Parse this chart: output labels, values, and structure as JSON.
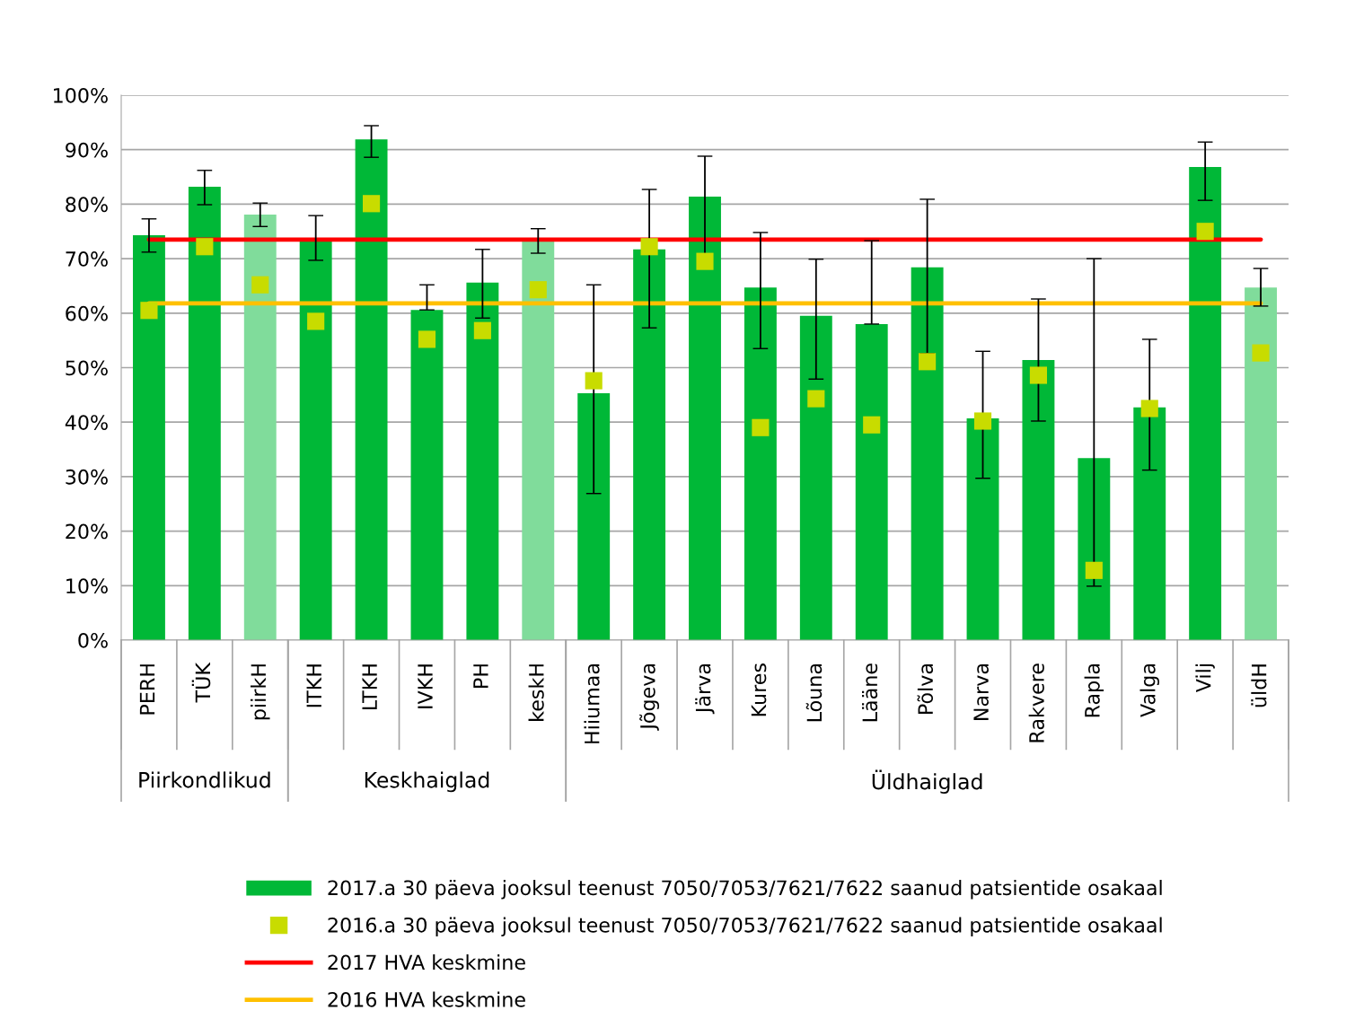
{
  "chart_data": {
    "type": "bar",
    "categories": [
      "PERH",
      "TÜK",
      "piirkH",
      "ITKH",
      "LTKH",
      "IVKH",
      "PH",
      "keskH",
      "Hiiumaa",
      "Jõgeva",
      "Järva",
      "Kures",
      "Lõuna",
      "Lääne",
      "Põlva",
      "Narva",
      "Rakvere",
      "Rapla",
      "Valga",
      "Vilj",
      "üldH"
    ],
    "series": [
      {
        "name": "2017.a 30 päeva jooksul teenust 7050/7053/7621/7622 saanud patsientide osakaal",
        "color": "#00b837",
        "colors": [
          "#00b837",
          "#00b837",
          "#80dc9b",
          "#00b837",
          "#00b837",
          "#00b837",
          "#00b837",
          "#80dc9b",
          "#00b837",
          "#00b837",
          "#00b837",
          "#00b837",
          "#00b837",
          "#00b837",
          "#00b837",
          "#00b837",
          "#00b837",
          "#00b837",
          "#00b837",
          "#00b837",
          "#80dc9b"
        ],
        "values": [
          74.3,
          83.2,
          78.1,
          73.8,
          91.9,
          60.6,
          65.6,
          73.3,
          45.3,
          71.7,
          81.4,
          64.7,
          59.5,
          58.0,
          68.4,
          40.7,
          51.4,
          33.4,
          42.7,
          86.8,
          64.7
        ],
        "errors": [
          [
            71.2,
            77.3
          ],
          [
            79.9,
            86.2
          ],
          [
            75.9,
            80.2
          ],
          [
            69.7,
            77.9
          ],
          [
            88.6,
            94.4
          ],
          [
            60.6,
            65.2
          ],
          [
            59.1,
            71.7
          ],
          [
            71.0,
            75.5
          ],
          [
            26.9,
            65.2
          ],
          [
            57.3,
            82.7
          ],
          [
            70.8,
            88.8
          ],
          [
            53.5,
            74.8
          ],
          [
            47.9,
            69.9
          ],
          [
            58.0,
            73.3
          ],
          [
            52.6,
            80.9
          ],
          [
            29.7,
            53.0
          ],
          [
            40.2,
            62.6
          ],
          [
            9.9,
            70.0
          ],
          [
            31.2,
            55.2
          ],
          [
            80.7,
            91.4
          ],
          [
            61.3,
            68.2
          ]
        ]
      },
      {
        "name": "2016.a 30 päeva jooksul teenust 7050/7053/7621/7622 saanud patsientide osakaal",
        "type": "scatter",
        "color": "#c8dc00",
        "marker": "square",
        "values": [
          60.5,
          72.2,
          65.2,
          58.5,
          80.1,
          55.2,
          56.8,
          64.3,
          47.6,
          72.2,
          69.5,
          39.0,
          44.3,
          39.5,
          51.1,
          40.2,
          48.6,
          12.8,
          42.5,
          75.0,
          52.7
        ]
      }
    ],
    "ref_lines": [
      {
        "axis": "y",
        "value": 73.5,
        "label": "2017 HVA keskmine",
        "color": "#ff0000",
        "line_style": "solid"
      },
      {
        "axis": "y",
        "value": 61.8,
        "label": "2016 HVA keskmine",
        "color": "#ffc000",
        "line_style": "solid"
      }
    ],
    "annotations": [
      "Piirkondlikud",
      "Keskhaiglad",
      "Üldhaiglad"
    ],
    "ylim": [
      0,
      100
    ],
    "yticks": [
      {
        "value": 0,
        "label": "0%"
      },
      {
        "value": 10,
        "label": "10%"
      },
      {
        "value": 20,
        "label": "20%"
      },
      {
        "value": 30,
        "label": "30%"
      },
      {
        "value": 40,
        "label": "40%"
      },
      {
        "value": 50,
        "label": "50%"
      },
      {
        "value": 60,
        "label": "60%"
      },
      {
        "value": 70,
        "label": "70%"
      },
      {
        "value": 80,
        "label": "80%"
      },
      {
        "value": 90,
        "label": "90%"
      },
      {
        "value": 100,
        "label": "100%"
      }
    ],
    "grid": "y",
    "legend": "bottom"
  }
}
